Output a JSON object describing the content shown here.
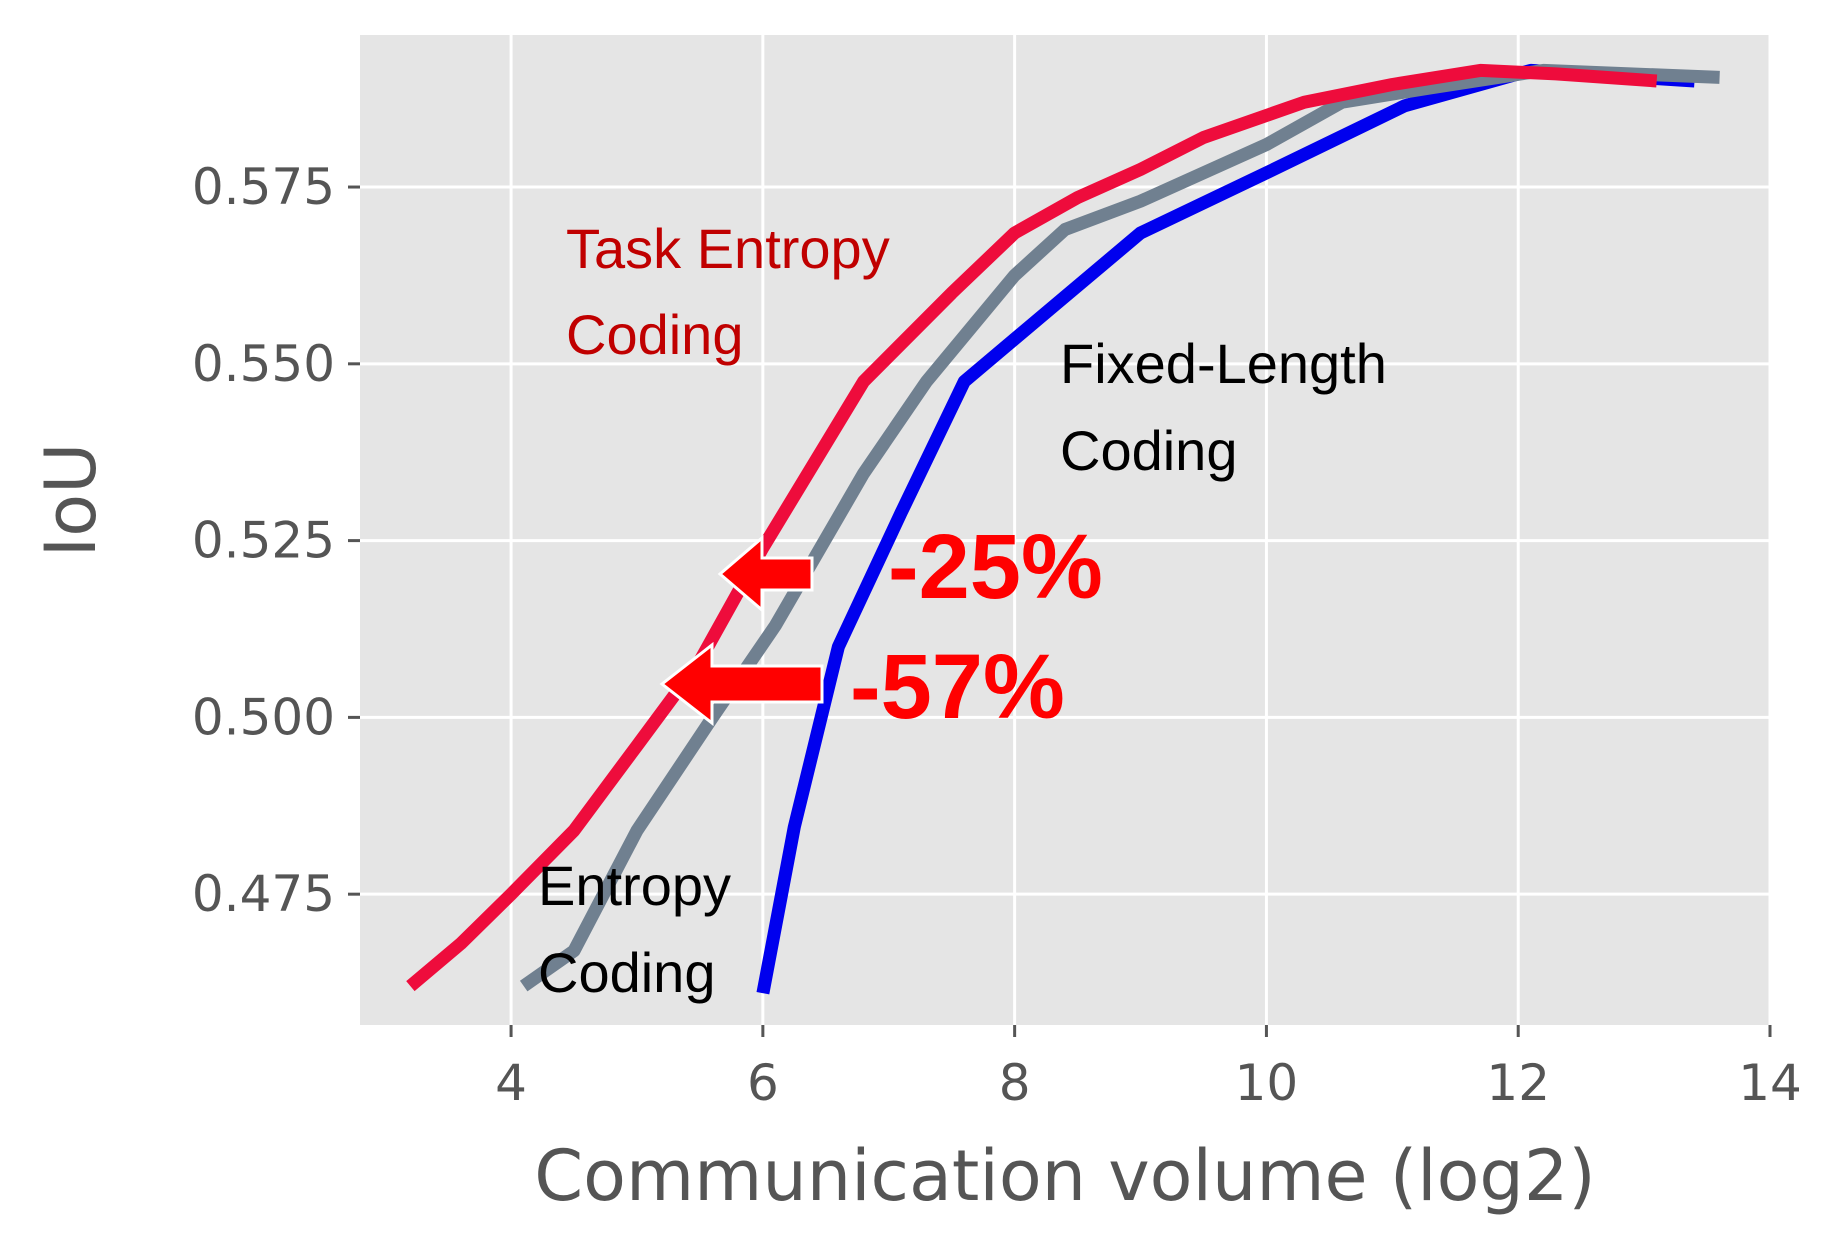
{
  "chart_data": {
    "type": "line",
    "title": "",
    "xlabel": "Communication volume (log2)",
    "ylabel": "IoU",
    "xlim": [
      2.8,
      14.0
    ],
    "ylim": [
      0.4565,
      0.5965
    ],
    "xticks": [
      4,
      6,
      8,
      10,
      12,
      14
    ],
    "xtick_labels": [
      "4",
      "6",
      "8",
      "10",
      "12",
      "14"
    ],
    "yticks": [
      0.475,
      0.5,
      0.525,
      0.55,
      0.575
    ],
    "ytick_labels": [
      "0.475",
      "0.500",
      "0.525",
      "0.550",
      "0.575"
    ],
    "grid": true,
    "legend": "none",
    "series": [
      {
        "name": "Task Entropy Coding",
        "color": "#ee0c3c",
        "x": [
          3.2,
          3.6,
          4.0,
          4.5,
          5.0,
          5.5,
          6.0,
          6.8,
          7.5,
          8.0,
          8.5,
          9.0,
          9.5,
          10.3,
          11.0,
          11.7,
          12.3,
          13.1
        ],
        "y": [
          0.462,
          0.468,
          0.475,
          0.484,
          0.496,
          0.508,
          0.524,
          0.5475,
          0.56,
          0.5685,
          0.5735,
          0.5775,
          0.582,
          0.587,
          0.5895,
          0.5915,
          0.591,
          0.59
        ]
      },
      {
        "name": "Entropy Coding",
        "color": "#708090",
        "x": [
          4.1,
          4.5,
          5.0,
          5.6,
          6.1,
          6.8,
          7.3,
          8.0,
          8.4,
          9.0,
          10.0,
          10.6,
          11.3,
          12.2,
          13.6
        ],
        "y": [
          0.462,
          0.467,
          0.484,
          0.5,
          0.513,
          0.5345,
          0.5475,
          0.5625,
          0.569,
          0.573,
          0.581,
          0.587,
          0.589,
          0.5915,
          0.5905
        ]
      },
      {
        "name": "Fixed-Length Coding",
        "color": "#0000ee",
        "x": [
          6.0,
          6.25,
          6.6,
          7.1,
          7.6,
          8.3,
          9.0,
          10.0,
          11.1,
          12.1,
          13.4
        ],
        "y": [
          0.461,
          0.4845,
          0.51,
          0.529,
          0.5475,
          0.558,
          0.5685,
          0.577,
          0.5865,
          0.5915,
          0.59
        ]
      }
    ],
    "annotations": {
      "task_entropy_line1": "Task Entropy",
      "task_entropy_line2": "Coding",
      "fixed_length_line1": "Fixed-Length",
      "fixed_length_line2": "Coding",
      "entropy_line1": "Entropy",
      "entropy_line2": "Coding",
      "reduction_entropy": "-25%",
      "reduction_task_entropy": "-57%"
    },
    "colors": {
      "panel_bg": "#e5e5e5",
      "grid": "#ffffff",
      "task_entropy_text": "#c00000",
      "plain_text": "#000000",
      "arrow": "#ff0000"
    }
  }
}
